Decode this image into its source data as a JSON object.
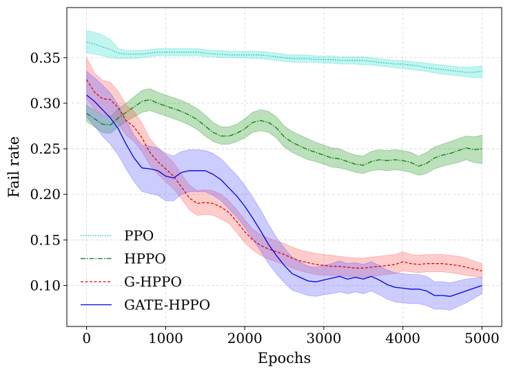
{
  "chart_data": {
    "type": "line",
    "title": "",
    "xlabel": "Epochs",
    "ylabel": "Fail rate",
    "xlim": [
      -250,
      5250
    ],
    "ylim": [
      0.055,
      0.405
    ],
    "x_ticks": [
      0,
      1000,
      2000,
      3000,
      4000,
      5000
    ],
    "x_tick_labels": [
      "0",
      "1000",
      "2000",
      "3000",
      "4000",
      "5000"
    ],
    "y_ticks": [
      0.1,
      0.15,
      0.2,
      0.25,
      0.3,
      0.35
    ],
    "y_tick_labels": [
      "0.10",
      "0.15",
      "0.20",
      "0.25",
      "0.30",
      "0.35"
    ],
    "grid": true,
    "legend_position": "lower-left",
    "series": [
      {
        "name": "PPO",
        "color": "#00bfbf",
        "band_color": "#40e0d0",
        "dash": "1.5 2",
        "x": [
          0,
          100,
          200,
          300,
          400,
          500,
          600,
          700,
          800,
          900,
          1000,
          1100,
          1200,
          1300,
          1400,
          1500,
          1600,
          1700,
          1800,
          1900,
          2000,
          2100,
          2200,
          2300,
          2400,
          2500,
          2600,
          2700,
          2800,
          2900,
          3000,
          3100,
          3200,
          3300,
          3400,
          3500,
          3600,
          3700,
          3800,
          3900,
          4000,
          4100,
          4200,
          4300,
          4400,
          4500,
          4600,
          4700,
          4800,
          4900,
          5000
        ],
        "y": [
          0.367,
          0.365,
          0.362,
          0.359,
          0.355,
          0.354,
          0.354,
          0.354,
          0.355,
          0.356,
          0.356,
          0.356,
          0.356,
          0.356,
          0.356,
          0.355,
          0.354,
          0.354,
          0.353,
          0.353,
          0.353,
          0.353,
          0.353,
          0.352,
          0.351,
          0.35,
          0.349,
          0.349,
          0.349,
          0.348,
          0.348,
          0.348,
          0.347,
          0.347,
          0.347,
          0.347,
          0.346,
          0.345,
          0.344,
          0.343,
          0.343,
          0.342,
          0.341,
          0.339,
          0.338,
          0.337,
          0.336,
          0.335,
          0.334,
          0.334,
          0.335
        ],
        "lower": [
          0.355,
          0.354,
          0.352,
          0.35,
          0.349,
          0.349,
          0.349,
          0.35,
          0.351,
          0.352,
          0.352,
          0.352,
          0.352,
          0.352,
          0.352,
          0.351,
          0.351,
          0.35,
          0.35,
          0.35,
          0.35,
          0.349,
          0.349,
          0.348,
          0.347,
          0.346,
          0.345,
          0.345,
          0.345,
          0.345,
          0.344,
          0.344,
          0.343,
          0.343,
          0.343,
          0.342,
          0.342,
          0.341,
          0.34,
          0.339,
          0.338,
          0.337,
          0.336,
          0.335,
          0.333,
          0.332,
          0.331,
          0.33,
          0.329,
          0.328,
          0.328
        ],
        "upper": [
          0.38,
          0.378,
          0.375,
          0.37,
          0.36,
          0.358,
          0.358,
          0.358,
          0.359,
          0.36,
          0.36,
          0.36,
          0.36,
          0.36,
          0.36,
          0.359,
          0.358,
          0.358,
          0.357,
          0.357,
          0.357,
          0.357,
          0.357,
          0.356,
          0.355,
          0.354,
          0.353,
          0.353,
          0.353,
          0.352,
          0.352,
          0.352,
          0.351,
          0.351,
          0.351,
          0.351,
          0.35,
          0.349,
          0.348,
          0.347,
          0.347,
          0.346,
          0.345,
          0.344,
          0.343,
          0.342,
          0.341,
          0.34,
          0.34,
          0.34,
          0.341
        ]
      },
      {
        "name": "HPPO",
        "color": "#008000",
        "band_color": "#2ca02c",
        "dash": "7 2 1.5 2",
        "x": [
          0,
          100,
          200,
          300,
          400,
          500,
          600,
          700,
          800,
          900,
          1000,
          1100,
          1200,
          1300,
          1400,
          1500,
          1600,
          1700,
          1800,
          1900,
          2000,
          2100,
          2200,
          2300,
          2400,
          2500,
          2600,
          2700,
          2800,
          2900,
          3000,
          3100,
          3200,
          3300,
          3400,
          3500,
          3600,
          3700,
          3800,
          3900,
          4000,
          4100,
          4200,
          4300,
          4400,
          4500,
          4600,
          4700,
          4800,
          4900,
          5000
        ],
        "y": [
          0.289,
          0.283,
          0.277,
          0.276,
          0.284,
          0.29,
          0.296,
          0.302,
          0.304,
          0.3,
          0.297,
          0.294,
          0.291,
          0.287,
          0.282,
          0.275,
          0.268,
          0.264,
          0.264,
          0.267,
          0.272,
          0.279,
          0.281,
          0.279,
          0.273,
          0.263,
          0.257,
          0.253,
          0.249,
          0.246,
          0.243,
          0.24,
          0.239,
          0.236,
          0.233,
          0.232,
          0.236,
          0.238,
          0.237,
          0.238,
          0.237,
          0.235,
          0.231,
          0.234,
          0.24,
          0.243,
          0.245,
          0.248,
          0.251,
          0.249,
          0.25
        ],
        "lower": [
          0.28,
          0.274,
          0.268,
          0.267,
          0.274,
          0.28,
          0.285,
          0.29,
          0.292,
          0.289,
          0.286,
          0.283,
          0.28,
          0.276,
          0.271,
          0.264,
          0.258,
          0.255,
          0.255,
          0.258,
          0.262,
          0.268,
          0.27,
          0.268,
          0.262,
          0.252,
          0.246,
          0.242,
          0.238,
          0.236,
          0.233,
          0.23,
          0.229,
          0.227,
          0.224,
          0.223,
          0.226,
          0.227,
          0.226,
          0.227,
          0.226,
          0.224,
          0.221,
          0.223,
          0.228,
          0.231,
          0.233,
          0.235,
          0.238,
          0.235,
          0.234
        ],
        "upper": [
          0.298,
          0.292,
          0.286,
          0.285,
          0.294,
          0.3,
          0.307,
          0.314,
          0.316,
          0.312,
          0.309,
          0.306,
          0.303,
          0.299,
          0.294,
          0.287,
          0.279,
          0.274,
          0.274,
          0.277,
          0.283,
          0.29,
          0.293,
          0.291,
          0.285,
          0.275,
          0.269,
          0.265,
          0.261,
          0.257,
          0.254,
          0.251,
          0.25,
          0.246,
          0.243,
          0.242,
          0.247,
          0.249,
          0.248,
          0.249,
          0.248,
          0.246,
          0.242,
          0.246,
          0.252,
          0.255,
          0.258,
          0.261,
          0.264,
          0.263,
          0.265
        ]
      },
      {
        "name": "G-HPPO",
        "color": "#e00000",
        "band_color": "#ff6060",
        "dash": "4 2.5",
        "x": [
          0,
          100,
          200,
          300,
          400,
          500,
          600,
          700,
          800,
          900,
          1000,
          1100,
          1200,
          1300,
          1400,
          1500,
          1600,
          1700,
          1800,
          1900,
          2000,
          2100,
          2200,
          2300,
          2400,
          2500,
          2600,
          2700,
          2800,
          2900,
          3000,
          3100,
          3200,
          3300,
          3400,
          3500,
          3600,
          3700,
          3800,
          3900,
          4000,
          4100,
          4200,
          4300,
          4400,
          4500,
          4600,
          4700,
          4800,
          4900,
          5000
        ],
        "y": [
          0.326,
          0.312,
          0.305,
          0.304,
          0.295,
          0.281,
          0.274,
          0.262,
          0.246,
          0.236,
          0.228,
          0.22,
          0.208,
          0.196,
          0.19,
          0.191,
          0.19,
          0.186,
          0.18,
          0.17,
          0.159,
          0.15,
          0.144,
          0.14,
          0.137,
          0.134,
          0.13,
          0.127,
          0.125,
          0.123,
          0.122,
          0.121,
          0.121,
          0.12,
          0.119,
          0.119,
          0.12,
          0.121,
          0.122,
          0.123,
          0.126,
          0.124,
          0.123,
          0.124,
          0.124,
          0.124,
          0.123,
          0.122,
          0.12,
          0.118,
          0.116
        ],
        "lower": [
          0.305,
          0.293,
          0.287,
          0.286,
          0.278,
          0.265,
          0.258,
          0.247,
          0.232,
          0.222,
          0.214,
          0.206,
          0.195,
          0.183,
          0.177,
          0.178,
          0.177,
          0.173,
          0.168,
          0.158,
          0.147,
          0.139,
          0.133,
          0.129,
          0.126,
          0.123,
          0.119,
          0.116,
          0.114,
          0.112,
          0.111,
          0.111,
          0.111,
          0.11,
          0.109,
          0.109,
          0.11,
          0.111,
          0.112,
          0.113,
          0.116,
          0.115,
          0.114,
          0.115,
          0.115,
          0.115,
          0.114,
          0.113,
          0.111,
          0.11,
          0.109
        ],
        "upper": [
          0.35,
          0.333,
          0.325,
          0.323,
          0.313,
          0.298,
          0.291,
          0.278,
          0.261,
          0.251,
          0.243,
          0.235,
          0.222,
          0.21,
          0.204,
          0.205,
          0.204,
          0.2,
          0.193,
          0.183,
          0.172,
          0.162,
          0.156,
          0.152,
          0.149,
          0.146,
          0.142,
          0.139,
          0.137,
          0.135,
          0.134,
          0.133,
          0.132,
          0.131,
          0.13,
          0.13,
          0.131,
          0.132,
          0.133,
          0.134,
          0.137,
          0.134,
          0.133,
          0.134,
          0.134,
          0.134,
          0.133,
          0.132,
          0.13,
          0.127,
          0.124
        ]
      },
      {
        "name": "GATE-HPPO",
        "color": "#0000dd",
        "band_color": "#6060ff",
        "dash": "",
        "x": [
          0,
          100,
          200,
          300,
          400,
          500,
          600,
          700,
          800,
          900,
          1000,
          1100,
          1200,
          1300,
          1400,
          1500,
          1600,
          1700,
          1800,
          1900,
          2000,
          2100,
          2200,
          2300,
          2400,
          2500,
          2600,
          2700,
          2800,
          2900,
          3000,
          3100,
          3200,
          3300,
          3400,
          3500,
          3600,
          3700,
          3800,
          3900,
          4000,
          4100,
          4200,
          4300,
          4400,
          4500,
          4600,
          4700,
          4800,
          4900,
          5000
        ],
        "y": [
          0.309,
          0.302,
          0.293,
          0.284,
          0.272,
          0.255,
          0.24,
          0.229,
          0.228,
          0.226,
          0.22,
          0.218,
          0.224,
          0.226,
          0.226,
          0.226,
          0.222,
          0.216,
          0.207,
          0.198,
          0.187,
          0.174,
          0.16,
          0.145,
          0.133,
          0.122,
          0.113,
          0.109,
          0.105,
          0.104,
          0.106,
          0.108,
          0.11,
          0.107,
          0.109,
          0.107,
          0.11,
          0.106,
          0.101,
          0.098,
          0.097,
          0.096,
          0.096,
          0.094,
          0.089,
          0.089,
          0.088,
          0.091,
          0.094,
          0.097,
          0.1
        ],
        "lower": [
          0.285,
          0.275,
          0.264,
          0.255,
          0.243,
          0.228,
          0.214,
          0.203,
          0.201,
          0.199,
          0.193,
          0.193,
          0.2,
          0.203,
          0.203,
          0.203,
          0.199,
          0.193,
          0.184,
          0.175,
          0.164,
          0.151,
          0.138,
          0.124,
          0.113,
          0.103,
          0.095,
          0.092,
          0.089,
          0.088,
          0.09,
          0.091,
          0.093,
          0.091,
          0.093,
          0.091,
          0.094,
          0.09,
          0.085,
          0.082,
          0.081,
          0.08,
          0.08,
          0.078,
          0.074,
          0.074,
          0.073,
          0.077,
          0.081,
          0.086,
          0.091
        ],
        "upper": [
          0.335,
          0.328,
          0.32,
          0.311,
          0.298,
          0.281,
          0.265,
          0.254,
          0.253,
          0.251,
          0.245,
          0.242,
          0.247,
          0.249,
          0.249,
          0.248,
          0.245,
          0.239,
          0.23,
          0.221,
          0.21,
          0.197,
          0.183,
          0.167,
          0.153,
          0.141,
          0.131,
          0.126,
          0.121,
          0.12,
          0.122,
          0.124,
          0.127,
          0.124,
          0.125,
          0.123,
          0.126,
          0.122,
          0.117,
          0.114,
          0.113,
          0.112,
          0.112,
          0.11,
          0.104,
          0.104,
          0.103,
          0.105,
          0.107,
          0.108,
          0.109
        ]
      }
    ]
  }
}
